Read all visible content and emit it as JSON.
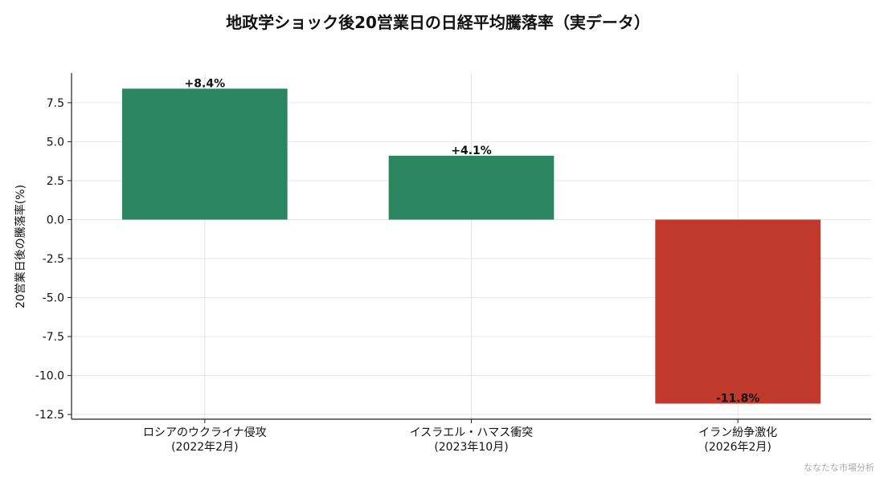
{
  "chart_data": {
    "type": "bar",
    "title": "地政学ショック後20営業日の日経平均騰落率（実データ）",
    "xlabel": "",
    "ylabel": "20営業日後の騰落率(%)",
    "categories": [
      "ロシアのウクライナ侵攻\n(2022年2月)",
      "イスラエル・ハマス衝突\n(2023年10月)",
      "イラン紛争激化\n(2026年2月)"
    ],
    "values": [
      8.4,
      4.1,
      -11.8
    ],
    "data_labels": [
      "+8.4%",
      "+4.1%",
      "-11.8%"
    ],
    "ylim": [
      -12.8,
      9.4
    ],
    "yticks": [
      7.5,
      5.0,
      2.5,
      0.0,
      -2.5,
      -5.0,
      -7.5,
      -10.0,
      -12.5
    ],
    "ytick_labels": [
      "7.5",
      "5.0",
      "2.5",
      "0.0",
      "-2.5",
      "-5.0",
      "-7.5",
      "-10.0",
      "-12.5"
    ],
    "grid": true,
    "colors": {
      "positive": "#2a8560",
      "negative": "#c0392b",
      "grid": "#e6e6e6",
      "axis": "#222222",
      "watermark": "#aaaaaa"
    }
  },
  "watermark": "ななたな市場分析"
}
